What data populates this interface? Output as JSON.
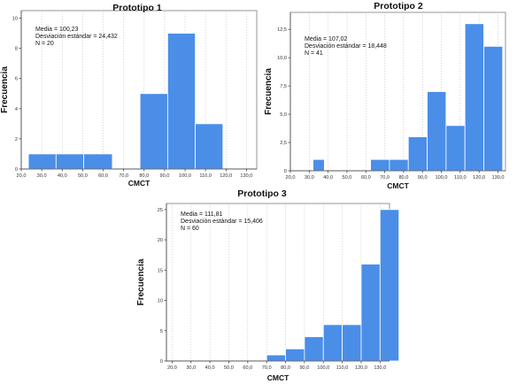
{
  "style": {
    "bar_color": "#4a8ee8",
    "grid": true
  },
  "chart_data": [
    {
      "type": "bar",
      "title": "Prototipo 1",
      "xlabel": "CMCT",
      "ylabel": "Frecuencia",
      "stats": [
        "Media = 100,23",
        "Desviación estándar = 24,432",
        "N = 20"
      ],
      "xlim": [
        20,
        135
      ],
      "ylim": [
        0,
        10.5
      ],
      "x_ticks": [
        20,
        30,
        40,
        50,
        60,
        70,
        80,
        90,
        100,
        110,
        120,
        130
      ],
      "x_tick_labels": [
        "20,0",
        "30,0",
        "40,0",
        "50,0",
        "60,0",
        "70,0",
        "80,0",
        "90,0",
        "100,0",
        "110,0",
        "120,0",
        "130,0"
      ],
      "y_ticks": [
        0,
        2,
        4,
        6,
        8,
        10
      ],
      "y_tick_labels": [
        "0",
        "2",
        "4",
        "6",
        "8",
        "10"
      ],
      "bins": [
        {
          "start": 23.5,
          "end": 37,
          "value": 1
        },
        {
          "start": 37,
          "end": 50.5,
          "value": 1
        },
        {
          "start": 50.5,
          "end": 64.5,
          "value": 1
        },
        {
          "start": 78,
          "end": 91.5,
          "value": 5
        },
        {
          "start": 91.5,
          "end": 105,
          "value": 9
        },
        {
          "start": 105,
          "end": 118.5,
          "value": 3
        }
      ]
    },
    {
      "type": "bar",
      "title": "Prototipo 2",
      "xlabel": "CMCT",
      "ylabel": "Frecuencia",
      "stats": [
        "Media = 107,02",
        "Desviación estándar = 18,448",
        "N = 41"
      ],
      "xlim": [
        20,
        134
      ],
      "ylim": [
        0,
        14
      ],
      "x_ticks": [
        20,
        30,
        40,
        50,
        60,
        70,
        80,
        90,
        100,
        110,
        120,
        130
      ],
      "x_tick_labels": [
        "20,0",
        "30,0",
        "40,0",
        "50,0",
        "60,0",
        "70,0",
        "80,0",
        "90,0",
        "100,0",
        "110,0",
        "120,0",
        "130,0"
      ],
      "y_ticks": [
        0,
        2.5,
        5,
        7.5,
        10,
        12.5
      ],
      "y_tick_labels": [
        "0",
        "2,5",
        "5,0",
        "7,5",
        "10,0",
        "12,5"
      ],
      "bins": [
        {
          "start": 32,
          "end": 38,
          "value": 1
        },
        {
          "start": 62.5,
          "end": 72.5,
          "value": 1
        },
        {
          "start": 72.5,
          "end": 82.5,
          "value": 1
        },
        {
          "start": 82.5,
          "end": 92.5,
          "value": 3
        },
        {
          "start": 92.5,
          "end": 102.5,
          "value": 7
        },
        {
          "start": 102.5,
          "end": 112.5,
          "value": 4
        },
        {
          "start": 112.5,
          "end": 122.5,
          "value": 13
        },
        {
          "start": 122.5,
          "end": 132.5,
          "value": 11
        }
      ]
    },
    {
      "type": "bar",
      "title": "Prototipo 3",
      "xlabel": "CMCT",
      "ylabel": "Frecuencia",
      "stats": [
        "Media = 111,81",
        "Desviación estándar = 15,406",
        "N = 60"
      ],
      "xlim": [
        17,
        135
      ],
      "ylim": [
        0,
        26
      ],
      "x_ticks": [
        20,
        30,
        40,
        50,
        60,
        70,
        80,
        90,
        100,
        110,
        120,
        130
      ],
      "x_tick_labels": [
        "20,0",
        "30,0",
        "40,0",
        "50,0",
        "60,0",
        "70,0",
        "80,0",
        "90,0",
        "100,0",
        "110,0",
        "120,0",
        "130,0"
      ],
      "y_ticks": [
        0,
        5,
        10,
        15,
        20,
        25
      ],
      "y_tick_labels": [
        "0",
        "5",
        "10",
        "15",
        "20",
        "25"
      ],
      "bins": [
        {
          "start": 70,
          "end": 80,
          "value": 1
        },
        {
          "start": 80,
          "end": 90,
          "value": 2
        },
        {
          "start": 90,
          "end": 100,
          "value": 4
        },
        {
          "start": 100,
          "end": 110,
          "value": 6
        },
        {
          "start": 110,
          "end": 120,
          "value": 6
        },
        {
          "start": 120,
          "end": 130,
          "value": 16
        },
        {
          "start": 130,
          "end": 140,
          "value": 25
        }
      ]
    }
  ]
}
